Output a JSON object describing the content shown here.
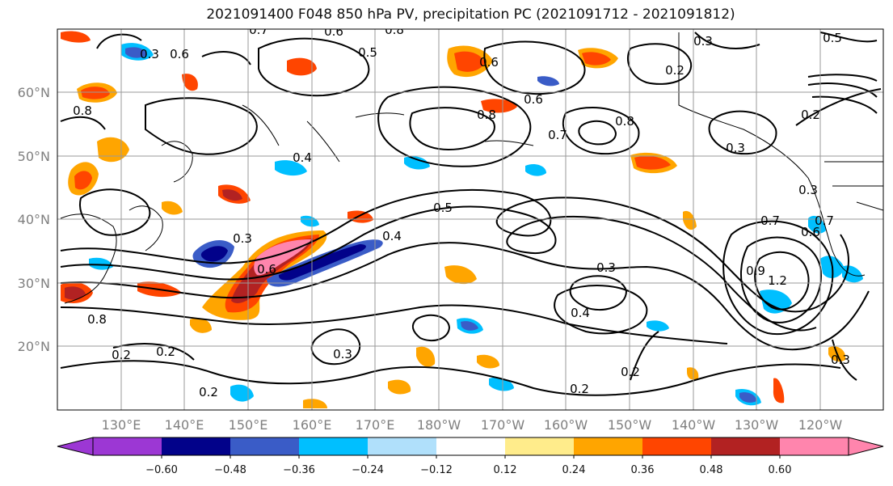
{
  "title": "2021091400 F048 850 hPa PV, precipitation PC (2021091712 - 2021091812)",
  "lat_labels": [
    "60°N",
    "50°N",
    "40°N",
    "30°N",
    "20°N"
  ],
  "lon_labels": [
    "130°E",
    "140°E",
    "150°E",
    "160°E",
    "170°E",
    "180°W",
    "170°W",
    "160°W",
    "150°W",
    "140°W",
    "130°W",
    "120°W"
  ],
  "contour_labels": [
    "0.8",
    "0.6",
    "0.7",
    "0.8",
    "0.5",
    "0.6",
    "0.3",
    "0.6",
    "0.2",
    "0.3",
    "0.5",
    "0.4",
    "0.2",
    "0.8",
    "0.6",
    "0.8",
    "0.7",
    "0.8",
    "0.3",
    "0.5",
    "0.4",
    "0.3",
    "0.6",
    "0.3",
    "0.3",
    "0.4",
    "0.2",
    "0.2",
    "0.3",
    "0.2",
    "0.2",
    "0.2",
    "0.3",
    "1.2",
    "0.7",
    "0.9",
    "0.6",
    "0.7"
  ],
  "colorbar": {
    "colors": [
      "#9c37d4",
      "#02028a",
      "#3a5cc7",
      "#00bfff",
      "#b0e0fb",
      "#ffffff",
      "#ffec8b",
      "#ffa500",
      "#ff4500",
      "#b22222",
      "#ff85ad"
    ],
    "tick_labels": [
      "−0.60",
      "−0.48",
      "−0.36",
      "−0.24",
      "−0.12",
      "0.12",
      "0.24",
      "0.36",
      "0.48",
      "0.60"
    ]
  },
  "map": {
    "lat_range": [
      10,
      70
    ],
    "lon_range": [
      120,
      250
    ],
    "contour_field": "850 hPa PV",
    "fill_field": "precipitation PC"
  }
}
